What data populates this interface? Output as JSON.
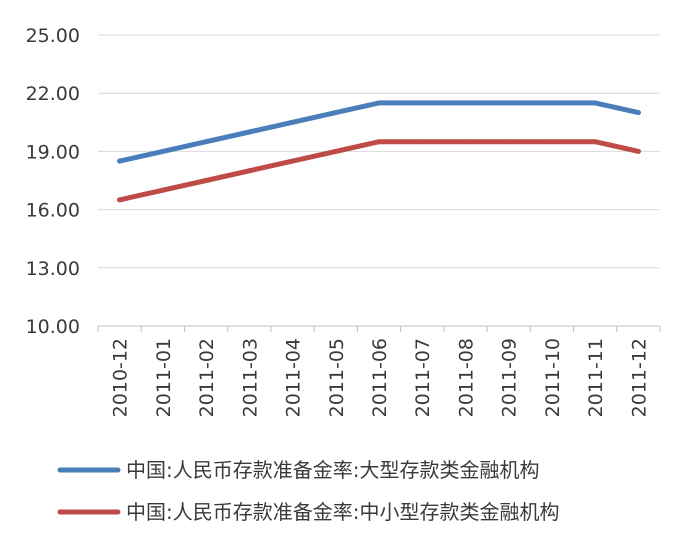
{
  "chart_data": {
    "type": "line",
    "categories": [
      "2010-12",
      "2011-01",
      "2011-02",
      "2011-03",
      "2011-04",
      "2011-05",
      "2011-06",
      "2011-07",
      "2011-08",
      "2011-09",
      "2011-10",
      "2011-11",
      "2011-12"
    ],
    "series": [
      {
        "name": "中国:人民币存款准备金率:大型存款类金融机构",
        "color": "#4a7ebb",
        "values": [
          18.5,
          19.0,
          19.5,
          20.0,
          20.5,
          21.0,
          21.5,
          21.5,
          21.5,
          21.5,
          21.5,
          21.5,
          21.0
        ]
      },
      {
        "name": "中国:人民币存款准备金率:中小型存款类金融机构",
        "color": "#be4b48",
        "values": [
          16.5,
          17.0,
          17.5,
          18.0,
          18.5,
          19.0,
          19.5,
          19.5,
          19.5,
          19.5,
          19.5,
          19.5,
          19.0
        ]
      }
    ],
    "yticks": [
      "10.00",
      "13.00",
      "16.00",
      "19.00",
      "22.00",
      "25.00"
    ],
    "ylim": [
      10,
      25
    ],
    "grid": true,
    "legend_position": "bottom",
    "title": "",
    "xlabel": "",
    "ylabel": ""
  }
}
